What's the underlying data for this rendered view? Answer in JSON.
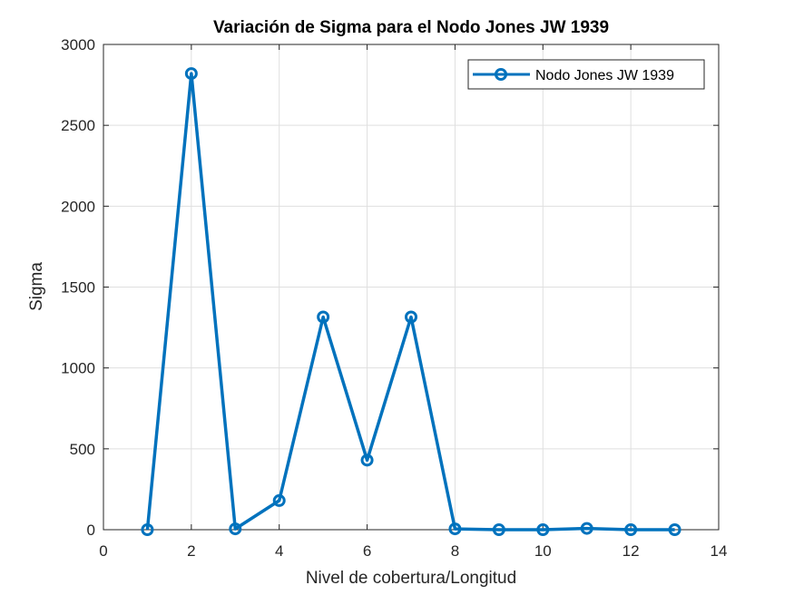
{
  "chart_data": {
    "type": "line",
    "title": "Variación de Sigma para el Nodo Jones JW 1939",
    "xlabel": "Nivel de cobertura/Longitud",
    "ylabel": "Sigma",
    "xlim": [
      0,
      14
    ],
    "ylim": [
      0,
      3000
    ],
    "xticks": [
      "0",
      "2",
      "4",
      "6",
      "8",
      "10",
      "12",
      "14"
    ],
    "yticks": [
      "0",
      "500",
      "1000",
      "1500",
      "2000",
      "2500",
      "3000"
    ],
    "grid": true,
    "legend_position": "top-right",
    "series": [
      {
        "name": "Nodo Jones JW 1939",
        "color": "#0072BD",
        "marker": "circle",
        "x": [
          1,
          2,
          3,
          4,
          5,
          6,
          7,
          8,
          9,
          10,
          11,
          12,
          13
        ],
        "y": [
          0,
          2820,
          5,
          180,
          1315,
          430,
          1315,
          5,
          0,
          0,
          8,
          0,
          0
        ]
      }
    ]
  }
}
